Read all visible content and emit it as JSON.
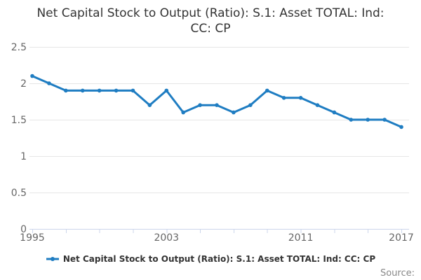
{
  "title": {
    "line1": "Net Capital Stock to Output (Ratio): S.1: Asset TOTAL: Ind:",
    "line2": "CC: CP",
    "full": "Net Capital Stock to Output (Ratio): S.1: Asset TOTAL: Ind: CC: CP"
  },
  "legend": {
    "label": "Net Capital Stock to Output (Ratio): S.1: Asset TOTAL: Ind: CC: CP"
  },
  "source": {
    "label": "Source:"
  },
  "colors": {
    "line": "#1f7dc2",
    "grid": "#e6e6e6",
    "axis": "#ccd6eb",
    "axis_label": "#666666",
    "title_text": "#333333",
    "background": "#ffffff"
  },
  "chart_data": {
    "type": "line",
    "title": "Net Capital Stock to Output (Ratio): S.1: Asset TOTAL: Ind: CC: CP",
    "xlabel": "",
    "ylabel": "",
    "x": [
      1995,
      1996,
      1997,
      1998,
      1999,
      2000,
      2001,
      2002,
      2003,
      2004,
      2005,
      2006,
      2007,
      2008,
      2009,
      2010,
      2011,
      2012,
      2013,
      2014,
      2015,
      2016,
      2017
    ],
    "series": [
      {
        "name": "Net Capital Stock to Output (Ratio): S.1: Asset TOTAL: Ind: CC: CP",
        "values": [
          2.1,
          2.0,
          1.9,
          1.9,
          1.9,
          1.9,
          1.9,
          1.7,
          1.9,
          1.6,
          1.7,
          1.7,
          1.6,
          1.7,
          1.9,
          1.8,
          1.8,
          1.7,
          1.6,
          1.5,
          1.5,
          1.5,
          1.4
        ]
      }
    ],
    "ylim": [
      0,
      2.5
    ],
    "yticks": [
      0,
      0.5,
      1,
      1.5,
      2,
      2.5
    ],
    "ytick_labels": [
      "0",
      "0.5",
      "1",
      "1.5",
      "2",
      "2.5"
    ],
    "xticks_every": 2,
    "xtick_labeled": [
      1995,
      2003,
      2011,
      2017
    ],
    "grid": "horizontal",
    "legend_position": "bottom"
  }
}
